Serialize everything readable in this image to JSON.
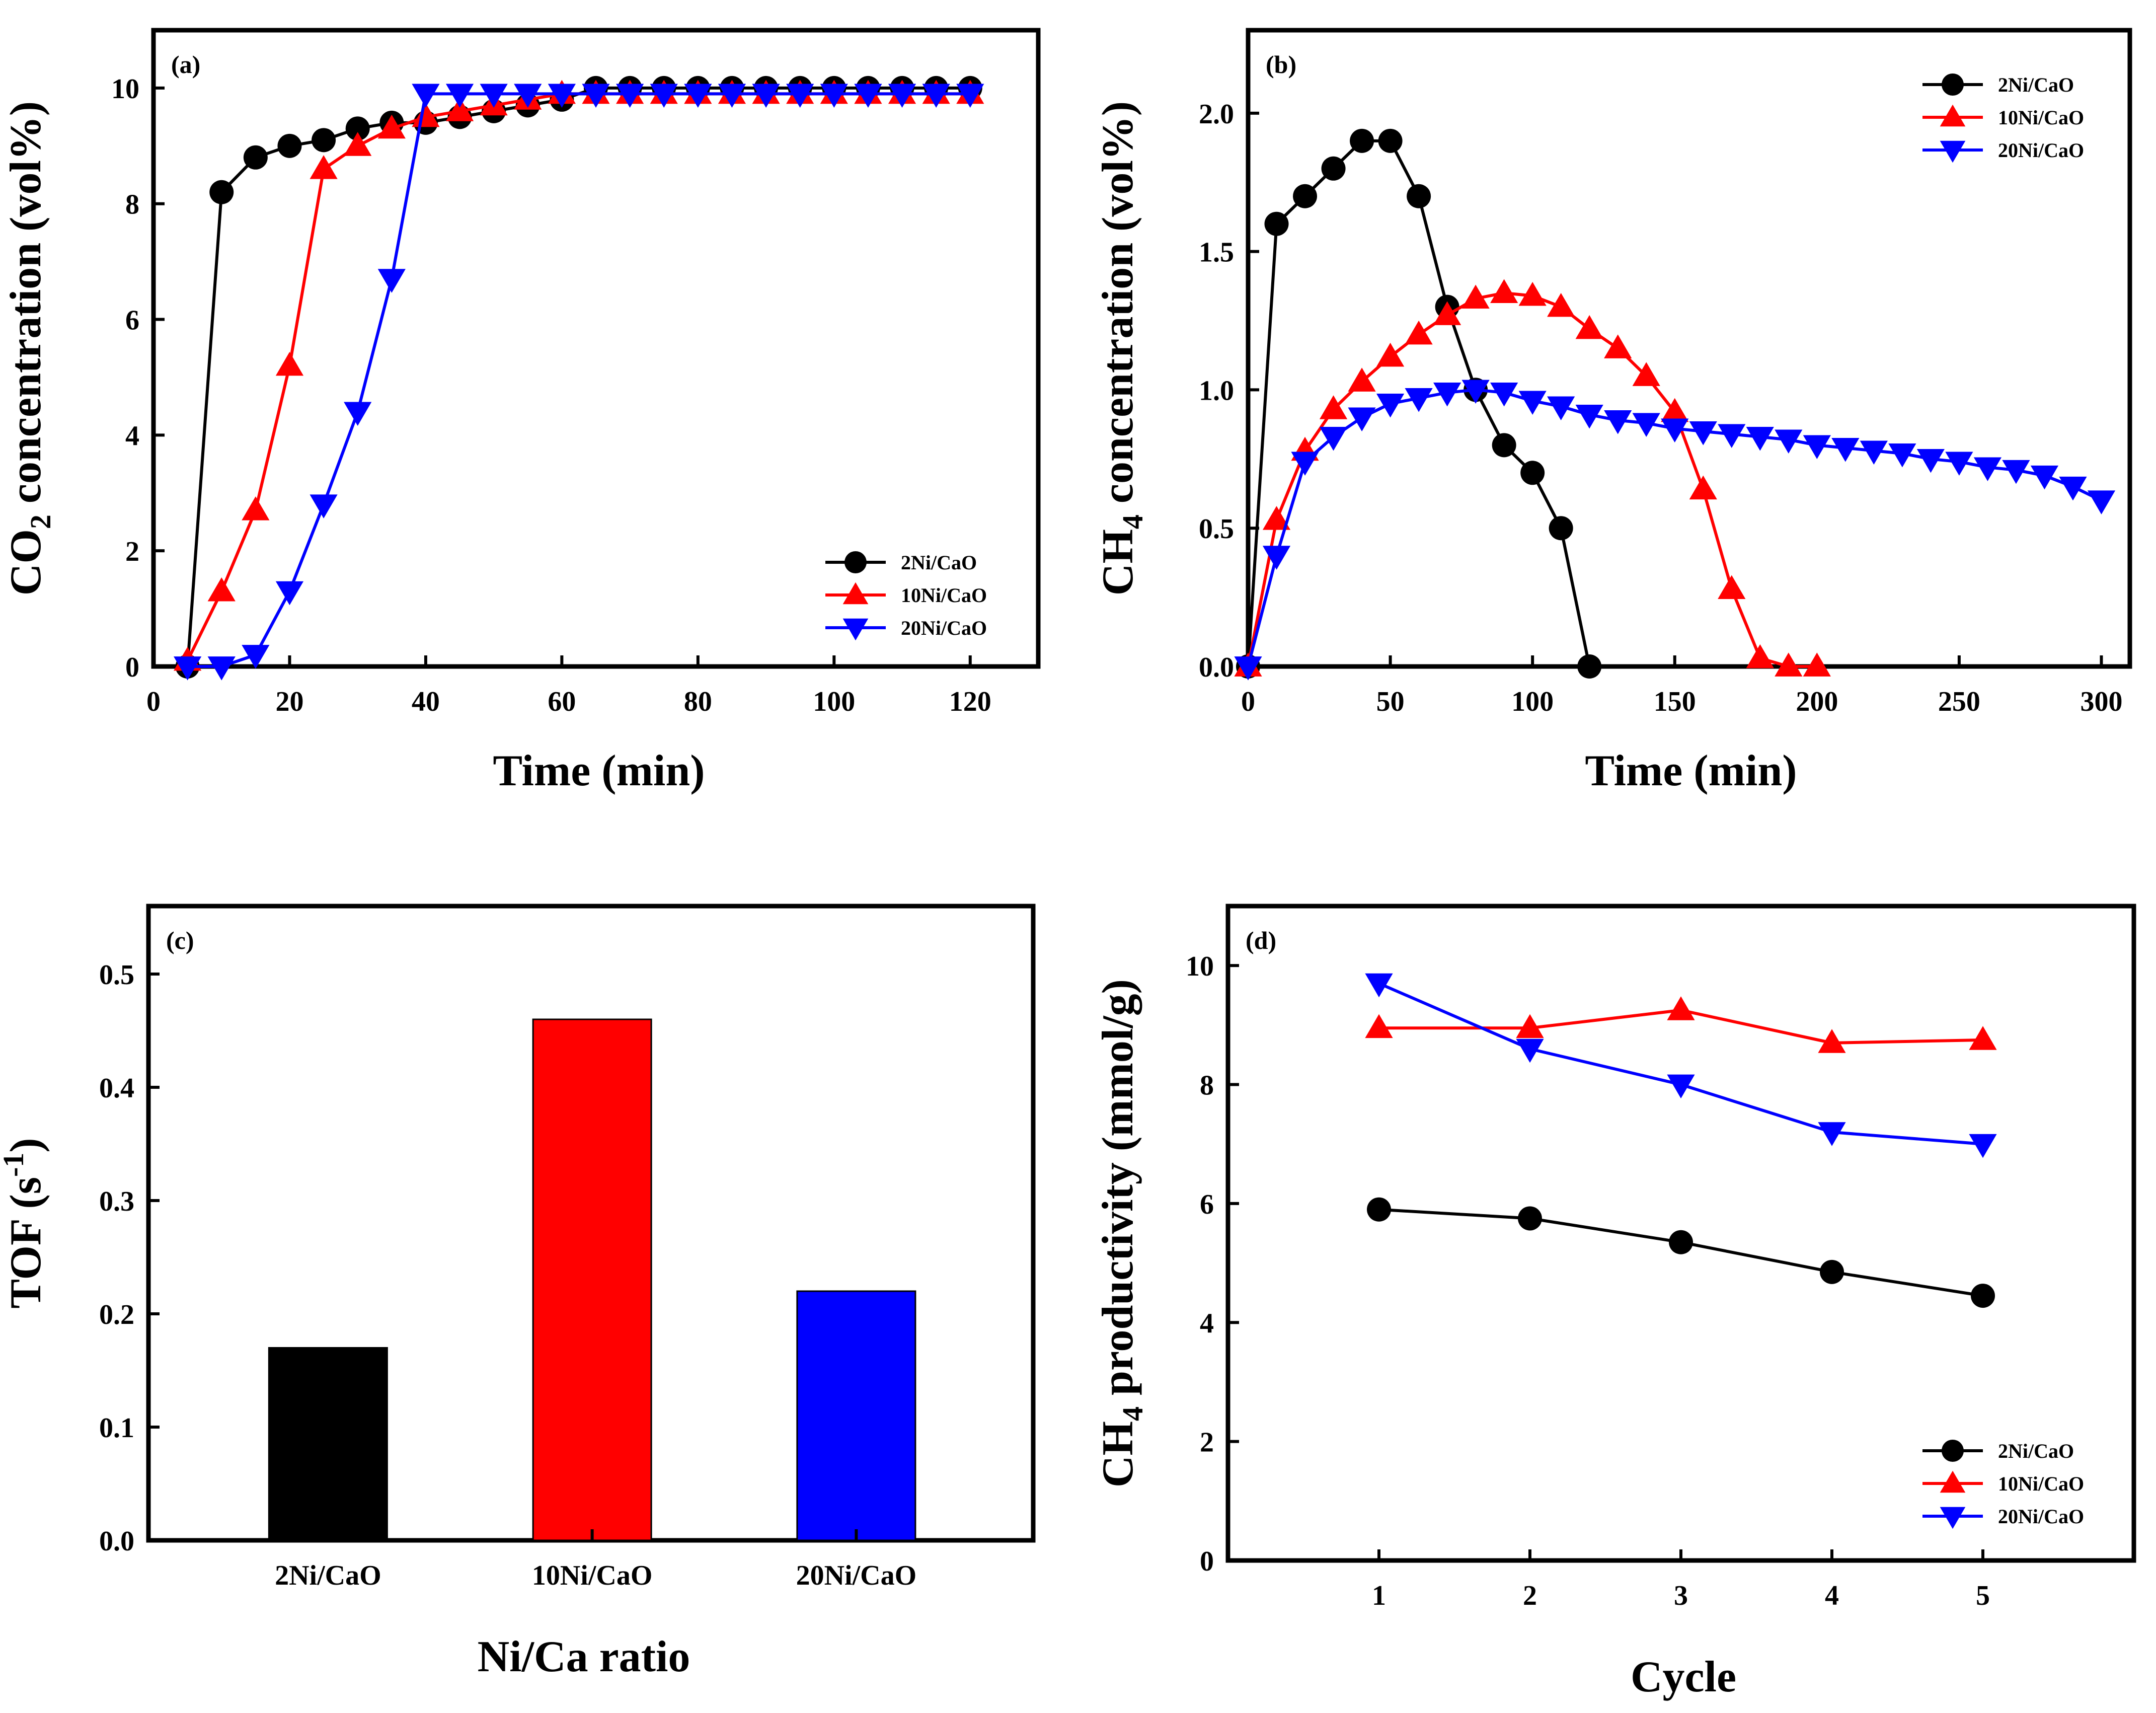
{
  "colors": {
    "black": "#000000",
    "red": "#ff0000",
    "blue": "#0000ff"
  },
  "chart_data": [
    {
      "panel": "(a)",
      "type": "line",
      "xlabel": "Time (min)",
      "ylabel": {
        "main": "CO",
        "sub": "2",
        "rest": " concentration (vol%)"
      },
      "xlim": [
        0,
        130
      ],
      "ylim": [
        0,
        11
      ],
      "xticks": [
        0,
        20,
        40,
        60,
        80,
        100,
        120
      ],
      "yticks": [
        0,
        2,
        4,
        6,
        8,
        10
      ],
      "ytick_labels": [
        "0",
        "2",
        "4",
        "6",
        "8",
        "10"
      ],
      "legend_position": "bottom-right",
      "series": [
        {
          "name": "2Ni/CaO",
          "color": "#000000",
          "marker": "circle",
          "x": [
            5,
            10,
            15,
            20,
            25,
            30,
            35,
            40,
            45,
            50,
            55,
            60,
            65,
            70,
            75,
            80,
            85,
            90,
            95,
            100,
            105,
            110,
            115,
            120
          ],
          "y": [
            0,
            8.2,
            8.8,
            9.0,
            9.1,
            9.3,
            9.4,
            9.4,
            9.5,
            9.6,
            9.7,
            9.8,
            10,
            10,
            10,
            10,
            10,
            10,
            10,
            10,
            10,
            10,
            10,
            10
          ]
        },
        {
          "name": "10Ni/CaO",
          "color": "#ff0000",
          "marker": "triangle-up",
          "x": [
            5,
            10,
            15,
            20,
            25,
            30,
            35,
            40,
            45,
            50,
            55,
            60,
            65,
            70,
            75,
            80,
            85,
            90,
            95,
            100,
            105,
            110,
            115,
            120
          ],
          "y": [
            0.1,
            1.3,
            2.7,
            5.2,
            8.6,
            9.0,
            9.3,
            9.5,
            9.6,
            9.7,
            9.8,
            9.9,
            9.9,
            9.9,
            9.9,
            9.9,
            9.9,
            9.9,
            9.9,
            9.9,
            9.9,
            9.9,
            9.9,
            9.9
          ]
        },
        {
          "name": "20Ni/CaO",
          "color": "#0000ff",
          "marker": "triangle-down",
          "x": [
            5,
            10,
            15,
            20,
            25,
            30,
            35,
            40,
            45,
            50,
            55,
            60,
            65,
            70,
            75,
            80,
            85,
            90,
            95,
            100,
            105,
            110,
            115,
            120
          ],
          "y": [
            0,
            0,
            0.2,
            1.3,
            2.8,
            4.4,
            6.7,
            9.9,
            9.9,
            9.9,
            9.9,
            9.9,
            9.9,
            9.9,
            9.9,
            9.9,
            9.9,
            9.9,
            9.9,
            9.9,
            9.9,
            9.9,
            9.9,
            9.9
          ]
        }
      ]
    },
    {
      "panel": "(b)",
      "type": "line",
      "xlabel": "Time (min)",
      "ylabel": {
        "main": "CH",
        "sub": "4",
        "rest": " concentration (vol%)"
      },
      "xlim": [
        0,
        310
      ],
      "ylim": [
        0,
        2.3
      ],
      "xticks": [
        0,
        50,
        100,
        150,
        200,
        250,
        300
      ],
      "yticks": [
        0,
        0.5,
        1.0,
        1.5,
        2.0
      ],
      "ytick_labels": [
        "0.0",
        "0.5",
        "1.0",
        "1.5",
        "2.0"
      ],
      "legend_position": "top-right",
      "series": [
        {
          "name": "2Ni/CaO",
          "color": "#000000",
          "marker": "circle",
          "x": [
            0,
            10,
            20,
            30,
            40,
            50,
            60,
            70,
            80,
            90,
            100,
            110,
            120
          ],
          "y": [
            0,
            1.6,
            1.7,
            1.8,
            1.9,
            1.9,
            1.7,
            1.3,
            1.0,
            0.8,
            0.7,
            0.5,
            0
          ]
        },
        {
          "name": "10Ni/CaO",
          "color": "#ff0000",
          "marker": "triangle-up",
          "x": [
            0,
            10,
            20,
            30,
            40,
            50,
            60,
            70,
            80,
            90,
            100,
            110,
            120,
            130,
            140,
            150,
            160,
            170,
            180,
            190,
            200
          ],
          "y": [
            0,
            0.53,
            0.78,
            0.93,
            1.03,
            1.12,
            1.2,
            1.27,
            1.33,
            1.35,
            1.34,
            1.3,
            1.22,
            1.15,
            1.05,
            0.92,
            0.64,
            0.28,
            0.03,
            0,
            0
          ]
        },
        {
          "name": "20Ni/CaO",
          "color": "#0000ff",
          "marker": "triangle-down",
          "x": [
            0,
            10,
            20,
            30,
            40,
            50,
            60,
            70,
            80,
            90,
            100,
            110,
            120,
            130,
            140,
            150,
            160,
            170,
            180,
            190,
            200,
            210,
            220,
            230,
            240,
            250,
            260,
            270,
            280,
            290,
            300
          ],
          "y": [
            0,
            0.4,
            0.74,
            0.83,
            0.9,
            0.95,
            0.97,
            0.99,
            1.0,
            0.99,
            0.96,
            0.94,
            0.91,
            0.89,
            0.88,
            0.86,
            0.85,
            0.84,
            0.83,
            0.82,
            0.8,
            0.79,
            0.78,
            0.77,
            0.75,
            0.74,
            0.72,
            0.71,
            0.69,
            0.65,
            0.6
          ]
        }
      ]
    },
    {
      "panel": "(c)",
      "type": "bar",
      "xlabel": "Ni/Ca ratio",
      "ylabel": {
        "main": "TOF (s",
        "sup": "-1",
        "rest": ")"
      },
      "ylim": [
        0,
        0.56
      ],
      "yticks": [
        0,
        0.1,
        0.2,
        0.3,
        0.4,
        0.5
      ],
      "ytick_labels": [
        "0.0",
        "0.1",
        "0.2",
        "0.3",
        "0.4",
        "0.5"
      ],
      "categories": [
        "2Ni/CaO",
        "10Ni/CaO",
        "20Ni/CaO"
      ],
      "values": [
        0.17,
        0.46,
        0.22
      ],
      "bar_colors": [
        "#000000",
        "#ff0000",
        "#0000ff"
      ]
    },
    {
      "panel": "(d)",
      "type": "line",
      "xlabel": "Cycle",
      "ylabel": {
        "main": "CH",
        "sub": "4",
        "rest": " productivity (mmol/g)"
      },
      "xlim": [
        0,
        6
      ],
      "ylim": [
        0,
        11
      ],
      "xticks": [
        1,
        2,
        3,
        4,
        5
      ],
      "yticks": [
        0,
        2,
        4,
        6,
        8,
        10
      ],
      "ytick_labels": [
        "0",
        "2",
        "4",
        "6",
        "8",
        "10"
      ],
      "legend_position": "bottom-right",
      "series": [
        {
          "name": "2Ni/CaO",
          "color": "#000000",
          "marker": "circle",
          "x": [
            1,
            2,
            3,
            4,
            5
          ],
          "y": [
            5.9,
            5.75,
            5.35,
            4.85,
            4.45
          ]
        },
        {
          "name": "10Ni/CaO",
          "color": "#ff0000",
          "marker": "triangle-up",
          "x": [
            1,
            2,
            3,
            4,
            5
          ],
          "y": [
            8.95,
            8.95,
            9.25,
            8.7,
            8.75
          ]
        },
        {
          "name": "20Ni/CaO",
          "color": "#0000ff",
          "marker": "triangle-down",
          "x": [
            1,
            2,
            3,
            4,
            5
          ],
          "y": [
            9.7,
            8.6,
            8.0,
            7.2,
            7.0
          ]
        }
      ]
    }
  ]
}
